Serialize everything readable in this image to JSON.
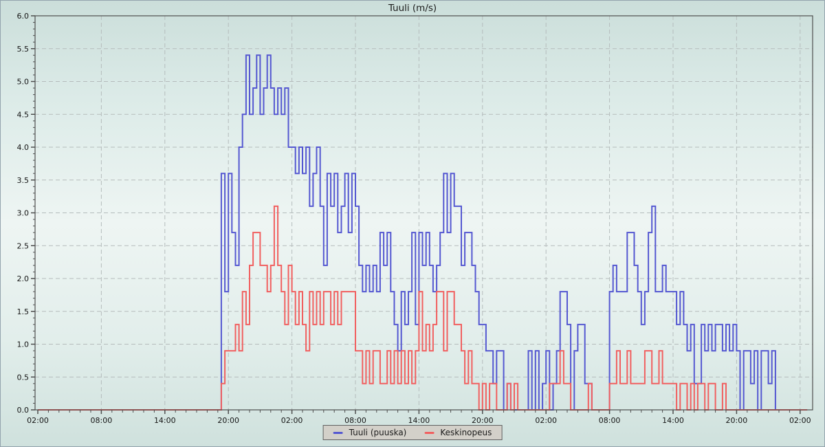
{
  "title": "Tuuli (m/s)",
  "legend": {
    "items": [
      {
        "label": "Tuuli (puuska)",
        "color": "#5457d1"
      },
      {
        "label": "Keskinopeus",
        "color": "#f15f5f"
      }
    ],
    "background": "#d3d0c9",
    "border": "#606060"
  },
  "colors": {
    "grid": "#b5bcbc",
    "axis": "#4d4d4d",
    "tick_text": "#141414",
    "background_top": "#cbdeda",
    "background_middle": "#eef5f3",
    "background_bottom": "#cfe1dd"
  },
  "chart_data": {
    "type": "line",
    "step": true,
    "title": "Tuuli (m/s)",
    "xlabel": "",
    "ylabel": "",
    "ylim": [
      0,
      6
    ],
    "y_tick_step": 0.5,
    "y_minor_tick_step": 0.1,
    "y_tick_labels": [
      "0.0",
      "0.5",
      "1.0",
      "1.5",
      "2.0",
      "2.5",
      "3.0",
      "3.5",
      "4.0",
      "4.5",
      "5.0",
      "5.5",
      "6.0"
    ],
    "x_hours_total": 72,
    "x_tick_interval_hours": 6,
    "x_minor_tick_interval_hours": 1,
    "x_tick_labels": [
      "02:00",
      "08:00",
      "14:00",
      "20:00",
      "02:00",
      "08:00",
      "14:00",
      "20:00",
      "02:00",
      "08:00",
      "14:00",
      "20:00",
      "02:00"
    ],
    "sample_interval_hours": 0.3333,
    "grid": "dashed",
    "legend_position": "bottom-center",
    "series": [
      {
        "name": "Tuuli (puuska)",
        "color": "#5457d1",
        "values": [
          0,
          0,
          0,
          0,
          0,
          0,
          0,
          0,
          0,
          0,
          0,
          0,
          0,
          0,
          0,
          0,
          0,
          0,
          0,
          0,
          0,
          0,
          0,
          0,
          0,
          0,
          0,
          0,
          0,
          0,
          0,
          0,
          0,
          0,
          0,
          0,
          0,
          0,
          0,
          0,
          0,
          0,
          0,
          0,
          0,
          0,
          0,
          0,
          0,
          0,
          0,
          0,
          3.6,
          1.8,
          3.6,
          2.7,
          2.2,
          4.0,
          4.5,
          5.4,
          4.5,
          4.9,
          5.4,
          4.5,
          4.9,
          5.4,
          4.9,
          4.5,
          4.9,
          4.5,
          4.9,
          4.0,
          4.0,
          3.6,
          4.0,
          3.6,
          4.0,
          3.1,
          3.6,
          4.0,
          3.1,
          2.2,
          3.6,
          3.1,
          3.6,
          2.7,
          3.1,
          3.6,
          2.7,
          3.6,
          3.1,
          2.2,
          1.8,
          2.2,
          1.8,
          2.2,
          1.8,
          2.7,
          2.2,
          2.7,
          1.8,
          1.3,
          0.9,
          1.8,
          1.3,
          1.8,
          2.7,
          1.3,
          2.7,
          2.2,
          2.7,
          2.2,
          1.8,
          2.2,
          2.7,
          3.6,
          2.7,
          3.6,
          3.1,
          3.1,
          2.2,
          2.7,
          2.7,
          2.2,
          1.8,
          1.3,
          1.3,
          0.9,
          0.9,
          0.4,
          0.9,
          0.9,
          0,
          0.4,
          0,
          0,
          0,
          0,
          0,
          0.9,
          0,
          0.9,
          0,
          0.4,
          0.9,
          0,
          0.4,
          0.9,
          1.8,
          1.8,
          1.3,
          0,
          0.9,
          1.3,
          1.3,
          0.4,
          0.4,
          0,
          0,
          0,
          0,
          0,
          1.8,
          2.2,
          1.8,
          1.8,
          1.8,
          2.7,
          2.7,
          2.2,
          1.8,
          1.3,
          1.8,
          2.7,
          3.1,
          1.8,
          1.8,
          2.2,
          1.8,
          1.8,
          1.8,
          1.3,
          1.8,
          1.3,
          0.9,
          1.3,
          0.4,
          0.4,
          1.3,
          0.9,
          1.3,
          0.9,
          1.3,
          1.3,
          0.9,
          1.3,
          0.9,
          1.3,
          0.9,
          0,
          0.9,
          0.9,
          0.4,
          0.9,
          0,
          0.9,
          0.9,
          0.4,
          0.9,
          0,
          0,
          0,
          0,
          0,
          0,
          0,
          0,
          0
        ]
      },
      {
        "name": "Keskinopeus",
        "color": "#f15f5f",
        "values": [
          0,
          0,
          0,
          0,
          0,
          0,
          0,
          0,
          0,
          0,
          0,
          0,
          0,
          0,
          0,
          0,
          0,
          0,
          0,
          0,
          0,
          0,
          0,
          0,
          0,
          0,
          0,
          0,
          0,
          0,
          0,
          0,
          0,
          0,
          0,
          0,
          0,
          0,
          0,
          0,
          0,
          0,
          0,
          0,
          0,
          0,
          0,
          0,
          0,
          0,
          0,
          0,
          0.4,
          0.9,
          0.9,
          0.9,
          1.3,
          0.9,
          1.8,
          1.3,
          2.2,
          2.7,
          2.7,
          2.2,
          2.2,
          1.8,
          2.2,
          3.1,
          2.2,
          1.8,
          1.3,
          2.2,
          1.8,
          1.3,
          1.8,
          1.3,
          0.9,
          1.8,
          1.3,
          1.8,
          1.3,
          1.8,
          1.8,
          1.3,
          1.8,
          1.3,
          1.8,
          1.8,
          1.8,
          1.8,
          0.9,
          0.9,
          0.4,
          0.9,
          0.4,
          0.9,
          0.9,
          0.4,
          0.4,
          0.9,
          0.4,
          0.9,
          0.4,
          0.9,
          0.4,
          0.9,
          0.4,
          0.9,
          1.8,
          0.9,
          1.3,
          0.9,
          1.3,
          1.8,
          1.8,
          0.9,
          1.8,
          1.8,
          1.3,
          1.3,
          0.9,
          0.4,
          0.9,
          0.4,
          0.4,
          0,
          0.4,
          0,
          0.4,
          0.4,
          0,
          0,
          0,
          0.4,
          0,
          0.4,
          0,
          0,
          0,
          0,
          0,
          0,
          0,
          0,
          0,
          0.4,
          0.4,
          0.4,
          0.9,
          0.4,
          0.4,
          0,
          0,
          0,
          0,
          0,
          0.4,
          0,
          0,
          0,
          0,
          0,
          0.4,
          0.4,
          0.9,
          0.4,
          0.4,
          0.9,
          0.4,
          0.4,
          0.4,
          0.4,
          0.9,
          0.9,
          0.4,
          0.4,
          0.9,
          0.4,
          0.4,
          0.4,
          0.4,
          0,
          0.4,
          0.4,
          0,
          0.4,
          0,
          0.4,
          0.4,
          0,
          0.4,
          0.4,
          0,
          0,
          0.4,
          0,
          0,
          0,
          0,
          0,
          0,
          0,
          0,
          0,
          0,
          0,
          0,
          0,
          0,
          0,
          0,
          0,
          0,
          0,
          0,
          0,
          0,
          0
        ]
      }
    ]
  }
}
